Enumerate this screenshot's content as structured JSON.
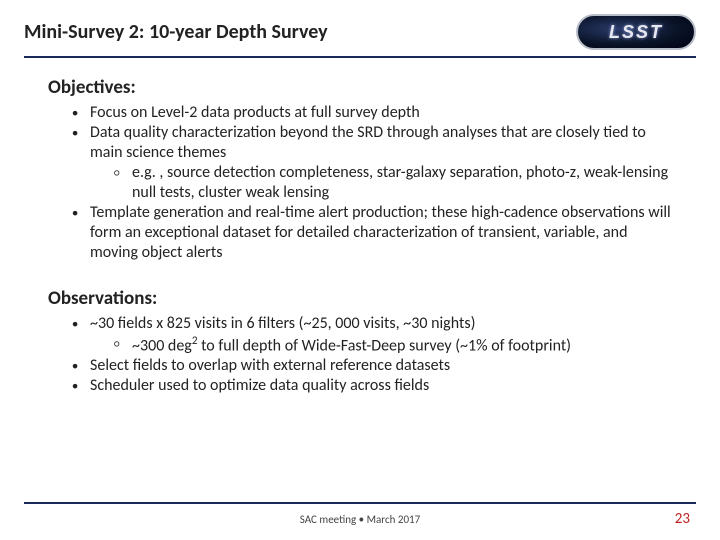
{
  "title": "Mini-Survey 2: 10-year Depth Survey",
  "logo_text": "LSST",
  "sections": {
    "objectives": {
      "heading": "Objectives:",
      "b1": "Focus on Level-2 data products at full survey depth",
      "b2": "Data quality characterization beyond the SRD through analyses that are closely tied to main science themes",
      "b2s1": "e.g. , source detection completeness, star-galaxy separation, photo-z, weak-lensing null tests, cluster weak lensing",
      "b3": "Template generation and real-time alert production; these high-cadence observations will form an exceptional dataset for detailed characterization of transient, variable, and moving object alerts"
    },
    "observations": {
      "heading": "Observations:",
      "b1": "~30 fields x 825 visits in 6 filters (~25, 000 visits, ~30 nights)",
      "b1s1_pre": "~300 deg",
      "b1s1_sup": "2",
      "b1s1_post": " to full depth of Wide-Fast-Deep survey (~1% of footprint)",
      "b2": "Select fields to overlap with external reference datasets",
      "b3": "Scheduler used to optimize data quality across fields"
    }
  },
  "footer": "SAC meeting • March 2017",
  "page_number": "23",
  "colors": {
    "rule": "#1a2a5a",
    "pageno": "#c02020"
  }
}
